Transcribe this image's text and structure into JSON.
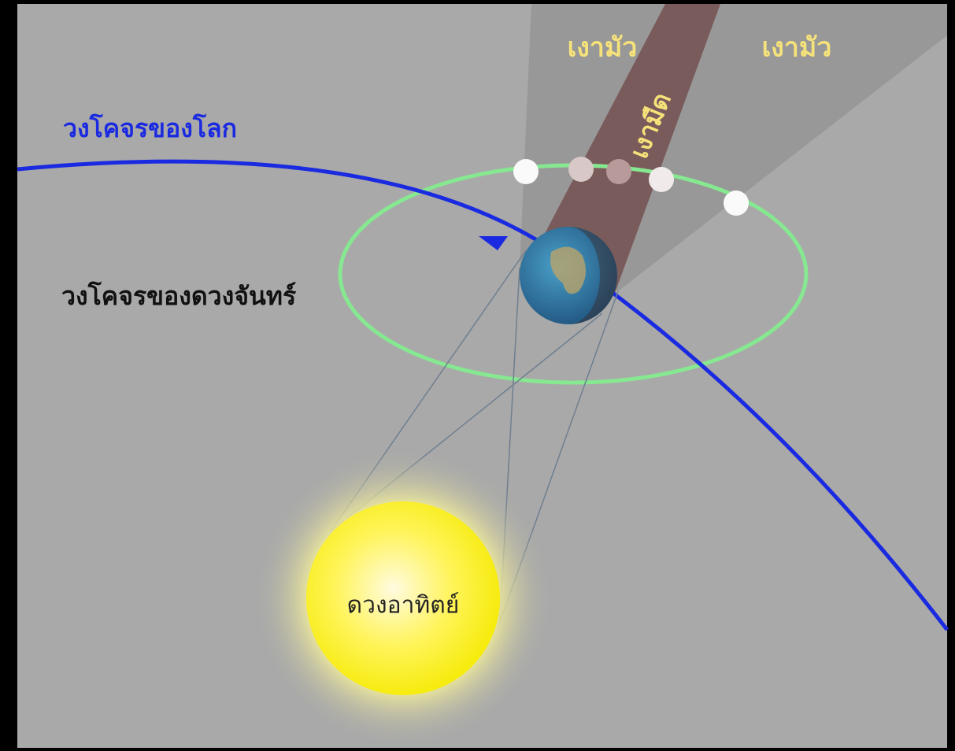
{
  "labels": {
    "penumbra_left": "เงามัว",
    "penumbra_right": "เงามัว",
    "umbra": "เงามืด",
    "earth_orbit": "วงโคจรของโลก",
    "moon_orbit": "วงโคจรของดวงจันทร์",
    "sun": "ดวงอาทิตย์"
  }
}
